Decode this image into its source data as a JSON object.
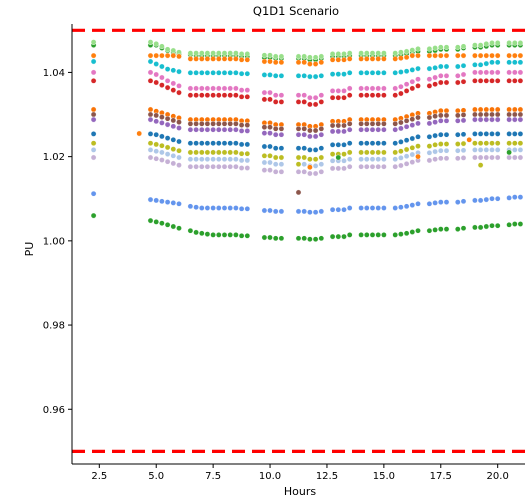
{
  "chart_data": {
    "type": "scatter",
    "title": "Q1D1 Scenario",
    "xlabel": "Hours",
    "ylabel": "PU",
    "xlim": [
      1.3,
      21.2
    ],
    "ylim": [
      0.947,
      1.0515
    ],
    "x_ticks": [
      2.5,
      5.0,
      7.5,
      10.0,
      12.5,
      15.0,
      17.5,
      20.0
    ],
    "x_tick_labels": [
      "2.5",
      "5.0",
      "7.5",
      "10.0",
      "12.5",
      "15.0",
      "17.5",
      "20.0"
    ],
    "y_ticks": [
      0.96,
      0.98,
      1.0,
      1.02,
      1.04
    ],
    "y_tick_labels": [
      "0.96",
      "0.98",
      "1.00",
      "1.02",
      "1.04"
    ],
    "reference_lines": [
      {
        "y": 1.05,
        "color": "#ff0000",
        "style": "dashed"
      },
      {
        "y": 0.95,
        "color": "#ff0000",
        "style": "dashed"
      }
    ],
    "hours": [
      2.25,
      4.75,
      5.0,
      5.25,
      5.5,
      5.75,
      6.0,
      6.5,
      6.75,
      7.0,
      7.25,
      7.5,
      7.75,
      8.0,
      8.25,
      8.5,
      8.75,
      9.0,
      9.75,
      10.0,
      10.25,
      10.5,
      11.25,
      11.5,
      11.75,
      12.0,
      12.25,
      12.75,
      13.0,
      13.25,
      13.5,
      14.0,
      14.25,
      14.5,
      14.75,
      15.0,
      15.5,
      15.75,
      16.0,
      16.25,
      16.5,
      17.0,
      17.25,
      17.5,
      17.75,
      18.25,
      18.5,
      19.0,
      19.25,
      19.5,
      19.75,
      20.0,
      20.5,
      20.75,
      21.0
    ],
    "series": [
      {
        "color": "#2ca02c",
        "base": [
          1.0465,
          1.0465,
          1.0465,
          1.0458,
          1.0452,
          1.0448,
          1.0444,
          1.0442,
          1.044,
          1.044,
          1.044,
          1.044,
          1.044,
          1.044,
          1.044,
          1.044,
          1.0438,
          1.0438,
          1.0435,
          1.0435,
          1.0433,
          1.0433,
          1.0433,
          1.0433,
          1.043,
          1.043,
          1.0433,
          1.0438,
          1.0438,
          1.0438,
          1.044,
          1.044,
          1.044,
          1.044,
          1.044,
          1.044,
          1.044,
          1.0442,
          1.0444,
          1.0448,
          1.045,
          1.045,
          1.0452,
          1.0455,
          1.0455,
          1.0455,
          1.0458,
          1.046,
          1.046,
          1.0462,
          1.0465,
          1.0465,
          1.0465,
          1.0465,
          1.0465
        ]
      },
      {
        "color": "#98df8a",
        "base": [
          1.0472,
          1.0472,
          1.0468,
          1.0462,
          1.0455,
          1.0452,
          1.0448,
          1.0446,
          1.0446,
          1.0446,
          1.0446,
          1.0446,
          1.0446,
          1.0446,
          1.0446,
          1.0446,
          1.0444,
          1.0444,
          1.0441,
          1.0441,
          1.0438,
          1.0438,
          1.0438,
          1.0438,
          1.0436,
          1.0436,
          1.0438,
          1.0444,
          1.0444,
          1.0444,
          1.0446,
          1.0446,
          1.0446,
          1.0446,
          1.0446,
          1.0446,
          1.0446,
          1.0448,
          1.045,
          1.0453,
          1.0456,
          1.0456,
          1.0458,
          1.046,
          1.046,
          1.046,
          1.0462,
          1.0465,
          1.0465,
          1.0468,
          1.047,
          1.047,
          1.047,
          1.047,
          1.047
        ]
      },
      {
        "color": "#17becf",
        "base": [
          1.0426,
          1.0426,
          1.042,
          1.0414,
          1.0408,
          1.0405,
          1.0402,
          1.0399,
          1.0399,
          1.0399,
          1.0399,
          1.0399,
          1.0399,
          1.0399,
          1.0399,
          1.0399,
          1.0397,
          1.0397,
          1.0394,
          1.0394,
          1.0392,
          1.0392,
          1.0392,
          1.0392,
          1.039,
          1.039,
          1.0392,
          1.0396,
          1.0396,
          1.0396,
          1.0399,
          1.0399,
          1.0399,
          1.0399,
          1.0399,
          1.0399,
          1.0399,
          1.0401,
          1.0403,
          1.0406,
          1.0409,
          1.0409,
          1.0411,
          1.0414,
          1.0414,
          1.0414,
          1.0416,
          1.0418,
          1.0418,
          1.0421,
          1.0424,
          1.0424,
          1.0424,
          1.0424,
          1.0424
        ]
      },
      {
        "color": "#ff7f0e",
        "base": [
          1.044,
          1.044,
          1.044,
          1.044,
          1.044,
          1.044,
          1.0438,
          1.0432,
          1.0432,
          1.0432,
          1.0432,
          1.0432,
          1.0432,
          1.0432,
          1.0432,
          1.0432,
          1.043,
          1.043,
          1.0426,
          1.0426,
          1.0424,
          1.0424,
          1.0424,
          1.0424,
          1.042,
          1.042,
          1.0424,
          1.043,
          1.043,
          1.043,
          1.0432,
          1.0432,
          1.0432,
          1.0432,
          1.0432,
          1.0432,
          1.0432,
          1.0434,
          1.0436,
          1.044,
          1.044,
          1.044,
          1.044,
          1.044,
          1.044,
          1.044,
          1.044,
          1.044,
          1.044,
          1.044,
          1.044,
          1.044,
          1.044,
          1.044,
          1.044
        ]
      },
      {
        "color": "#e377c2",
        "base": [
          1.04,
          1.04,
          1.0395,
          1.0388,
          1.038,
          1.0374,
          1.0368,
          1.0362,
          1.0362,
          1.0362,
          1.0362,
          1.0362,
          1.0362,
          1.0362,
          1.0362,
          1.0362,
          1.0358,
          1.0358,
          1.0352,
          1.0352,
          1.0346,
          1.0346,
          1.0346,
          1.0346,
          1.034,
          1.034,
          1.0346,
          1.0356,
          1.0356,
          1.0356,
          1.0362,
          1.0362,
          1.0362,
          1.0362,
          1.0362,
          1.0362,
          1.0362,
          1.0366,
          1.0372,
          1.0378,
          1.0384,
          1.0384,
          1.0388,
          1.0392,
          1.0392,
          1.0392,
          1.0395,
          1.04,
          1.04,
          1.04,
          1.04,
          1.04,
          1.04,
          1.04,
          1.04
        ]
      },
      {
        "color": "#d62728",
        "base": [
          1.038,
          1.038,
          1.0376,
          1.037,
          1.0364,
          1.0358,
          1.0352,
          1.0346,
          1.0346,
          1.0346,
          1.0346,
          1.0346,
          1.0346,
          1.0346,
          1.0346,
          1.0346,
          1.0342,
          1.0342,
          1.0336,
          1.0336,
          1.033,
          1.033,
          1.033,
          1.033,
          1.0324,
          1.0324,
          1.033,
          1.034,
          1.034,
          1.034,
          1.0346,
          1.0346,
          1.0346,
          1.0346,
          1.0346,
          1.0346,
          1.0346,
          1.035,
          1.0356,
          1.0362,
          1.0368,
          1.0368,
          1.0372,
          1.0376,
          1.0376,
          1.0376,
          1.0378,
          1.038,
          1.038,
          1.038,
          1.038,
          1.038,
          1.038,
          1.038,
          1.038
        ]
      },
      {
        "color": "#f97306",
        "base": [
          1.0312,
          1.0312,
          1.0308,
          1.0304,
          1.03,
          1.0296,
          1.0292,
          1.0288,
          1.0288,
          1.0288,
          1.0288,
          1.0288,
          1.0288,
          1.0288,
          1.0288,
          1.0288,
          1.0285,
          1.0285,
          1.028,
          1.028,
          1.0276,
          1.0276,
          1.0276,
          1.0276,
          1.0272,
          1.0272,
          1.0276,
          1.0284,
          1.0284,
          1.0284,
          1.0288,
          1.0288,
          1.0288,
          1.0288,
          1.0288,
          1.0288,
          1.0288,
          1.0291,
          1.0295,
          1.0299,
          1.0303,
          1.0303,
          1.0306,
          1.0309,
          1.0309,
          1.0309,
          1.031,
          1.0312,
          1.0312,
          1.0312,
          1.0312,
          1.0312,
          1.0312,
          1.0312,
          1.0312
        ]
      },
      {
        "color": "#8c564b",
        "base": [
          1.03,
          1.03,
          1.0298,
          1.0294,
          1.029,
          1.0286,
          1.0282,
          1.0278,
          1.0278,
          1.0278,
          1.0278,
          1.0278,
          1.0278,
          1.0278,
          1.0278,
          1.0278,
          1.0275,
          1.0275,
          1.027,
          1.027,
          1.0266,
          1.0266,
          1.0266,
          1.0266,
          1.0262,
          1.0262,
          1.0266,
          1.0274,
          1.0274,
          1.0274,
          1.0278,
          1.0278,
          1.0278,
          1.0278,
          1.0278,
          1.0278,
          1.0278,
          1.0281,
          1.0285,
          1.0289,
          1.0293,
          1.0293,
          1.0296,
          1.0298,
          1.0298,
          1.0298,
          1.0299,
          1.03,
          1.03,
          1.03,
          1.03,
          1.03,
          1.03,
          1.03,
          1.03
        ]
      },
      {
        "color": "#9467bd",
        "base": [
          1.0288,
          1.0288,
          1.0284,
          1.028,
          1.0276,
          1.0272,
          1.0268,
          1.0264,
          1.0264,
          1.0264,
          1.0264,
          1.0264,
          1.0264,
          1.0264,
          1.0264,
          1.0264,
          1.0261,
          1.0261,
          1.0256,
          1.0256,
          1.0252,
          1.0252,
          1.0252,
          1.0252,
          1.0248,
          1.0248,
          1.0252,
          1.026,
          1.026,
          1.026,
          1.0264,
          1.0264,
          1.0264,
          1.0264,
          1.0264,
          1.0264,
          1.0264,
          1.0267,
          1.0271,
          1.0275,
          1.0279,
          1.0279,
          1.0282,
          1.0285,
          1.0285,
          1.0285,
          1.0286,
          1.0288,
          1.0288,
          1.0288,
          1.0288,
          1.0288,
          1.0288,
          1.0288,
          1.0288
        ]
      },
      {
        "color": "#1f77b4",
        "base": [
          1.0254,
          1.0254,
          1.0252,
          1.0248,
          1.0244,
          1.024,
          1.0236,
          1.0232,
          1.0232,
          1.0232,
          1.0232,
          1.0232,
          1.0232,
          1.0232,
          1.0232,
          1.0232,
          1.0229,
          1.0229,
          1.0224,
          1.0224,
          1.022,
          1.022,
          1.022,
          1.022,
          1.0216,
          1.0216,
          1.022,
          1.0228,
          1.0228,
          1.0228,
          1.0232,
          1.0232,
          1.0232,
          1.0232,
          1.0232,
          1.0232,
          1.0232,
          1.0235,
          1.0239,
          1.0243,
          1.0247,
          1.0247,
          1.025,
          1.0252,
          1.0252,
          1.0252,
          1.0253,
          1.0254,
          1.0254,
          1.0254,
          1.0254,
          1.0254,
          1.0254,
          1.0254,
          1.0254
        ]
      },
      {
        "color": "#bcbd22",
        "base": [
          1.0232,
          1.0232,
          1.0229,
          1.0226,
          1.0222,
          1.0218,
          1.0214,
          1.021,
          1.021,
          1.021,
          1.021,
          1.021,
          1.021,
          1.021,
          1.021,
          1.021,
          1.0207,
          1.0207,
          1.0202,
          1.0202,
          1.0198,
          1.0198,
          1.0198,
          1.0198,
          1.0194,
          1.0194,
          1.0198,
          1.0206,
          1.0206,
          1.0206,
          1.021,
          1.021,
          1.021,
          1.021,
          1.021,
          1.021,
          1.021,
          1.0213,
          1.0217,
          1.0221,
          1.0225,
          1.0225,
          1.0228,
          1.023,
          1.023,
          1.023,
          1.0231,
          1.0232,
          1.0232,
          1.0232,
          1.0232,
          1.0232,
          1.0232,
          1.0232,
          1.0232
        ]
      },
      {
        "color": "#aec7e8",
        "base": [
          1.0216,
          1.0216,
          1.0213,
          1.021,
          1.0206,
          1.0202,
          1.0198,
          1.0194,
          1.0194,
          1.0194,
          1.0194,
          1.0194,
          1.0194,
          1.0194,
          1.0194,
          1.0194,
          1.0191,
          1.0191,
          1.0186,
          1.0186,
          1.0182,
          1.0182,
          1.0182,
          1.0182,
          1.0178,
          1.0178,
          1.0182,
          1.019,
          1.019,
          1.019,
          1.0194,
          1.0194,
          1.0194,
          1.0194,
          1.0194,
          1.0194,
          1.0194,
          1.0197,
          1.0201,
          1.0205,
          1.0209,
          1.0209,
          1.0212,
          1.0214,
          1.0214,
          1.0214,
          1.0215,
          1.0216,
          1.0216,
          1.0216,
          1.0216,
          1.0216,
          1.0216,
          1.0216,
          1.0216
        ]
      },
      {
        "color": "#c5b0d5",
        "base": [
          1.0198,
          1.0198,
          1.0195,
          1.0192,
          1.0188,
          1.0184,
          1.018,
          1.0176,
          1.0176,
          1.0176,
          1.0176,
          1.0176,
          1.0176,
          1.0176,
          1.0176,
          1.0176,
          1.0173,
          1.0173,
          1.0168,
          1.0168,
          1.0164,
          1.0164,
          1.0164,
          1.0164,
          1.016,
          1.016,
          1.0164,
          1.0172,
          1.0172,
          1.0172,
          1.0176,
          1.0176,
          1.0176,
          1.0176,
          1.0176,
          1.0176,
          1.0176,
          1.0179,
          1.0183,
          1.0187,
          1.0191,
          1.0191,
          1.0194,
          1.0196,
          1.0196,
          1.0196,
          1.0197,
          1.0198,
          1.0198,
          1.0198,
          1.0198,
          1.0198,
          1.0198,
          1.0198,
          1.0198
        ]
      },
      {
        "color": "#6495ed",
        "base": [
          1.0112,
          1.0098,
          1.0096,
          1.0094,
          1.0092,
          1.009,
          1.0088,
          1.0082,
          1.008,
          1.0078,
          1.0078,
          1.0078,
          1.0078,
          1.0078,
          1.0078,
          1.0078,
          1.0076,
          1.0076,
          1.0072,
          1.0072,
          1.007,
          1.007,
          1.007,
          1.007,
          1.0068,
          1.0068,
          1.007,
          1.0074,
          1.0074,
          1.0074,
          1.0078,
          1.0078,
          1.0078,
          1.0078,
          1.0078,
          1.0078,
          1.0078,
          1.008,
          1.0082,
          1.0085,
          1.0088,
          1.0088,
          1.009,
          1.0092,
          1.0092,
          1.0092,
          1.0094,
          1.0096,
          1.0096,
          1.0098,
          1.01,
          1.01,
          1.0102,
          1.0104,
          1.0104
        ]
      },
      {
        "color": "#2ca02c",
        "base": [
          1.006,
          1.0048,
          1.0045,
          1.0042,
          1.0038,
          1.0034,
          1.003,
          1.0024,
          1.002,
          1.0018,
          1.0016,
          1.0014,
          1.0014,
          1.0014,
          1.0014,
          1.0014,
          1.0012,
          1.0012,
          1.0008,
          1.0008,
          1.0006,
          1.0006,
          1.0006,
          1.0006,
          1.0004,
          1.0004,
          1.0006,
          1.001,
          1.001,
          1.001,
          1.0014,
          1.0014,
          1.0014,
          1.0014,
          1.0014,
          1.0014,
          1.0014,
          1.0016,
          1.0018,
          1.0021,
          1.0024,
          1.0024,
          1.0026,
          1.0028,
          1.0028,
          1.0028,
          1.003,
          1.0032,
          1.0032,
          1.0034,
          1.0036,
          1.0036,
          1.0038,
          1.004,
          1.004
        ]
      }
    ],
    "isolated_points": [
      {
        "x": 4.25,
        "y": 1.0255,
        "color": "#ff7f0e"
      },
      {
        "x": 11.25,
        "y": 1.0182,
        "color": "#bcbd22"
      },
      {
        "x": 11.25,
        "y": 1.0115,
        "color": "#8c564b"
      },
      {
        "x": 11.75,
        "y": 1.0175,
        "color": "#ff7f0e"
      },
      {
        "x": 13.0,
        "y": 1.0198,
        "color": "#2ca02c"
      },
      {
        "x": 16.5,
        "y": 1.02,
        "color": "#ff7f0e"
      },
      {
        "x": 18.75,
        "y": 1.024,
        "color": "#ff7f0e"
      },
      {
        "x": 19.25,
        "y": 1.018,
        "color": "#bcbd22"
      },
      {
        "x": 20.5,
        "y": 1.021,
        "color": "#2ca02c"
      }
    ]
  }
}
